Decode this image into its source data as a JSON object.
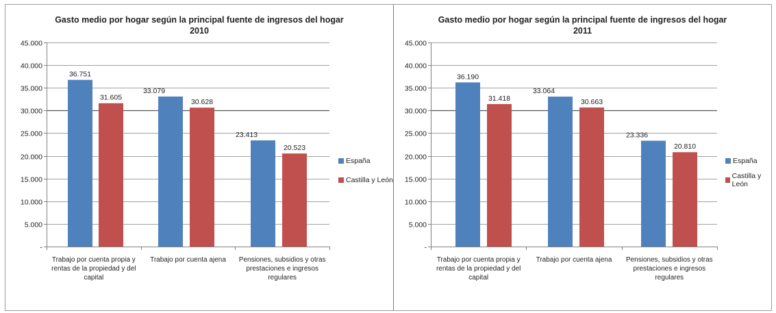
{
  "colors": {
    "espana": "#4f81bd",
    "castilla": "#c0504d",
    "axis": "#808080",
    "grid": "#808080"
  },
  "chart_data": [
    {
      "type": "bar",
      "title": "Gasto medio por hogar según la principal fuente de ingresos del hogar",
      "subtitle": "2010",
      "categories": [
        [
          "Trabajo por cuenta propia y",
          "rentas de la propiedad y del",
          "capital"
        ],
        [
          "Trabajo por cuenta ajena"
        ],
        [
          "Pensiones, subsidios y otras",
          "prestaciones e ingresos",
          "regulares"
        ]
      ],
      "series": [
        {
          "name": "España",
          "values": [
            36751,
            33079,
            23413
          ],
          "labels": [
            "36.751",
            "33.079",
            "23.413"
          ]
        },
        {
          "name": "Castilla y León",
          "values": [
            31605,
            30628,
            20523
          ],
          "labels": [
            "31.605",
            "30.628",
            "20.523"
          ]
        }
      ],
      "yticks": [
        0,
        5000,
        10000,
        15000,
        20000,
        25000,
        30000,
        35000,
        40000,
        45000
      ],
      "ytick_labels": [
        "-",
        "5.000",
        "10.000",
        "15.000",
        "20.000",
        "25.000",
        "30.000",
        "35.000",
        "40.000",
        "45.000"
      ],
      "ylim": [
        0,
        45000
      ],
      "grid": true,
      "legend": "right"
    },
    {
      "type": "bar",
      "title": "Gasto medio por hogar según la principal fuente de ingresos del hogar",
      "subtitle": "2011",
      "categories": [
        [
          "Trabajo por cuenta propia y",
          "rentas de la propiedad y del",
          "capital"
        ],
        [
          "Trabajo por cuenta ajena"
        ],
        [
          "Pensiones, subsidios y otras",
          "prestaciones e ingresos",
          "regulares"
        ]
      ],
      "series": [
        {
          "name": "España",
          "values": [
            36190,
            33064,
            23336
          ],
          "labels": [
            "36.190",
            "33.064",
            "23.336"
          ]
        },
        {
          "name": "Castilla y León",
          "values": [
            31418,
            30663,
            20810
          ],
          "labels": [
            "31.418",
            "30.663",
            "20.810"
          ]
        }
      ],
      "yticks": [
        0,
        5000,
        10000,
        15000,
        20000,
        25000,
        30000,
        35000,
        40000,
        45000
      ],
      "ytick_labels": [
        "-",
        "5.000",
        "10.000",
        "15.000",
        "20.000",
        "25.000",
        "30.000",
        "35.000",
        "40.000",
        "45.000"
      ],
      "ylim": [
        0,
        45000
      ],
      "grid": true,
      "legend": "right"
    }
  ]
}
